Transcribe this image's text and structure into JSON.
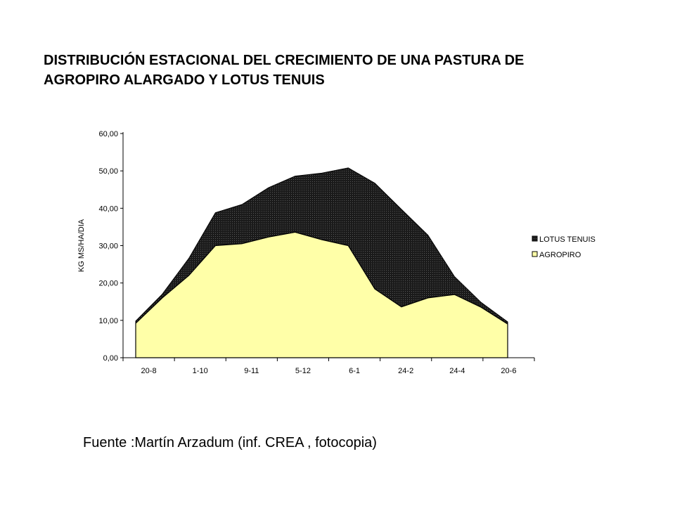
{
  "title_lines": [
    "DISTRIBUCIÓN ESTACIONAL DEL CRECIMIENTO DE UNA PASTURA DE",
    "AGROPIRO ALARGADO  Y LOTUS TENUIS"
  ],
  "source_text": "Fuente :Martín Arzadum (inf. CREA , fotocopia)",
  "colors": {
    "agropiro_fill": "#ffffa8",
    "lotus_fill": "#1a1a1a",
    "lotus_dots": "#5a5a5a",
    "axis": "#000000"
  },
  "chart_data": {
    "type": "area",
    "stacked": true,
    "ylabel": "KG MS/HA/DIA",
    "ylim": [
      0,
      60
    ],
    "y_ticks": [
      "0,00",
      "10,00",
      "20,00",
      "30,00",
      "40,00",
      "50,00",
      "60,00"
    ],
    "x_tick_labels": [
      "20-8",
      "1-10",
      "9-11",
      "5-12",
      "6-1",
      "24-2",
      "24-4",
      "20-6"
    ],
    "grid": false,
    "legend_position": "right",
    "series": [
      {
        "name": "AGROPIRO",
        "values": [
          9.2,
          16.0,
          22.0,
          30.0,
          30.5,
          32.3,
          33.6,
          31.6,
          30.0,
          18.4,
          13.6,
          16.0,
          16.9,
          13.5,
          9.0
        ]
      },
      {
        "name": "LOTUS TENUIS",
        "values": [
          0.6,
          1.0,
          4.6,
          8.8,
          10.5,
          13.2,
          15.0,
          17.8,
          20.8,
          28.3,
          26.1,
          16.8,
          4.8,
          1.3,
          0.6
        ]
      }
    ]
  }
}
